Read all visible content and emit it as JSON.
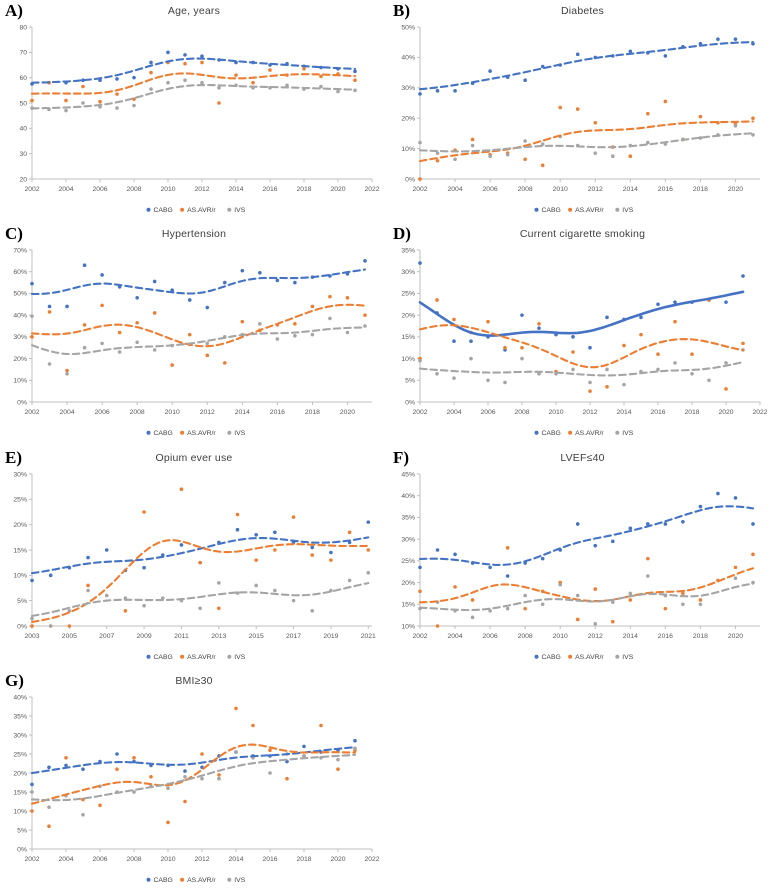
{
  "page": {
    "background": "#ffffff"
  },
  "colors": {
    "cabg": "#4472C4",
    "avr": "#ED7D31",
    "ivs": "#A5A5A5",
    "axis_line": "#BFBFBF",
    "tick_text": "#595959",
    "title_text": "#3f3f3f"
  },
  "legend": {
    "items": [
      "CABG",
      "AS.AVR/r",
      "IVS"
    ]
  },
  "chart_data": [
    {
      "letter": "A)",
      "title": "Age, years",
      "type": "scatter",
      "trend_bw": 1.9,
      "x": {
        "domain": [
          2002,
          2022
        ],
        "ticks": [
          2002,
          2004,
          2006,
          2008,
          2010,
          2012,
          2014,
          2016,
          2018,
          2020,
          2022
        ]
      },
      "y": {
        "domain": [
          20,
          80
        ],
        "ticks": [
          20,
          30,
          40,
          50,
          60,
          70,
          80
        ],
        "format": "num"
      },
      "years": [
        2002,
        2003,
        2004,
        2005,
        2006,
        2007,
        2008,
        2009,
        2010,
        2011,
        2012,
        2013,
        2014,
        2015,
        2016,
        2017,
        2018,
        2019,
        2020,
        2021
      ],
      "series": [
        {
          "name": "CABG",
          "color_key": "cabg",
          "trend": "dashed",
          "values": [
            57.5,
            58,
            58,
            59,
            59,
            59.5,
            60,
            66,
            70,
            69,
            68.5,
            67,
            66,
            66,
            65,
            65.5,
            64.5,
            64,
            63.5,
            62.5
          ]
        },
        {
          "name": "AS.AVR/r",
          "color_key": "avr",
          "trend": "dashed",
          "values": [
            51,
            58,
            51,
            56.5,
            50.5,
            53.5,
            51.5,
            62,
            66,
            65.5,
            66,
            50,
            61,
            58,
            63,
            61,
            63.5,
            60.5,
            61.5,
            59
          ]
        },
        {
          "name": "IVS",
          "color_key": "ivs",
          "trend": "dashed",
          "values": [
            48,
            47.5,
            47,
            50,
            48.5,
            48,
            49,
            55.5,
            58,
            59,
            58,
            56,
            57,
            56,
            56,
            57,
            55.5,
            56.5,
            54.5,
            55
          ]
        }
      ]
    },
    {
      "letter": "B)",
      "title": "Diabetes",
      "type": "scatter",
      "trend_bw": 2.2,
      "x": {
        "domain": [
          2002,
          2021.4
        ],
        "ticks": [
          2002,
          2004,
          2006,
          2008,
          2010,
          2012,
          2014,
          2016,
          2018,
          2020
        ]
      },
      "y": {
        "domain": [
          0,
          50
        ],
        "ticks": [
          0,
          10,
          20,
          30,
          40,
          50
        ],
        "format": "pct"
      },
      "years": [
        2002,
        2003,
        2004,
        2005,
        2006,
        2007,
        2008,
        2009,
        2010,
        2011,
        2012,
        2013,
        2014,
        2015,
        2016,
        2017,
        2018,
        2019,
        2020,
        2021
      ],
      "series": [
        {
          "name": "CABG",
          "color_key": "cabg",
          "trend": "dashed",
          "values": [
            28,
            29,
            29,
            31.5,
            35.5,
            33.5,
            32.5,
            37,
            37.5,
            41,
            40,
            40.5,
            42,
            41.5,
            40.5,
            43.5,
            44.5,
            46,
            46,
            44.5
          ]
        },
        {
          "name": "AS.AVR/r",
          "color_key": "avr",
          "trend": "dashed",
          "values": [
            0,
            6,
            9.5,
            13,
            8,
            8.5,
            6.5,
            4.5,
            23.5,
            23,
            18.5,
            10.5,
            7.5,
            21.5,
            25.5,
            13,
            20.5,
            18.5,
            18,
            20
          ]
        },
        {
          "name": "IVS",
          "color_key": "ivs",
          "trend": "dashed",
          "values": [
            12,
            8.5,
            6.5,
            11,
            7.5,
            8,
            12.5,
            11.5,
            14,
            11,
            8.5,
            7.5,
            11,
            12,
            11.5,
            13,
            13.5,
            14.5,
            17.5,
            14.5
          ]
        }
      ]
    },
    {
      "letter": "C)",
      "title": "Hypertension",
      "type": "scatter",
      "trend_bw": 1.6,
      "x": {
        "domain": [
          2002,
          2021.4
        ],
        "ticks": [
          2002,
          2004,
          2006,
          2008,
          2010,
          2012,
          2014,
          2016,
          2018,
          2020
        ]
      },
      "y": {
        "domain": [
          0,
          70
        ],
        "ticks": [
          0,
          10,
          20,
          30,
          40,
          50,
          60,
          70
        ],
        "format": "pct"
      },
      "years": [
        2002,
        2003,
        2004,
        2005,
        2006,
        2007,
        2008,
        2009,
        2010,
        2011,
        2012,
        2013,
        2014,
        2015,
        2016,
        2017,
        2018,
        2019,
        2020,
        2021
      ],
      "series": [
        {
          "name": "CABG",
          "color_key": "cabg",
          "trend": "dashed",
          "values": [
            54.5,
            44,
            44,
            63,
            58.5,
            53,
            48,
            55.5,
            51.5,
            47,
            43.5,
            55,
            60.5,
            59.5,
            56,
            55,
            57.5,
            58,
            59,
            65
          ]
        },
        {
          "name": "AS.AVR/r",
          "color_key": "avr",
          "trend": "dashed",
          "values": [
            30,
            41.5,
            14.5,
            35.5,
            44.5,
            32,
            36.5,
            41,
            17,
            31,
            21.5,
            18,
            37,
            33,
            35.5,
            36,
            44,
            48.5,
            48,
            40
          ]
        },
        {
          "name": "IVS",
          "color_key": "ivs",
          "trend": "dashed",
          "values": [
            39.5,
            17.5,
            13,
            25,
            27,
            23,
            27.5,
            24,
            26,
            26.5,
            27,
            30,
            31,
            36,
            29,
            30.5,
            31,
            38.5,
            32,
            35
          ]
        }
      ]
    },
    {
      "letter": "D)",
      "title": "Current cigarette smoking",
      "type": "scatter",
      "trend_bw": 1.7,
      "x": {
        "domain": [
          2002,
          2022
        ],
        "ticks": [
          2002,
          2004,
          2006,
          2008,
          2010,
          2012,
          2014,
          2016,
          2018,
          2020,
          2022
        ]
      },
      "y": {
        "domain": [
          0,
          35
        ],
        "ticks": [
          0,
          5,
          10,
          15,
          20,
          25,
          30,
          35
        ],
        "format": "pct"
      },
      "years": [
        2002,
        2003,
        2004,
        2005,
        2006,
        2007,
        2008,
        2009,
        2010,
        2011,
        2012,
        2013,
        2014,
        2015,
        2016,
        2017,
        2018,
        2019,
        2020,
        2021
      ],
      "series": [
        {
          "name": "CABG",
          "color_key": "cabg",
          "trend": "solid",
          "values": [
            32,
            20.5,
            14,
            14,
            15,
            12,
            20,
            17,
            15.5,
            15,
            12.5,
            19.5,
            19,
            19.5,
            22.5,
            23,
            23,
            23.5,
            23,
            29
          ]
        },
        {
          "name": "AS.AVR/r",
          "color_key": "avr",
          "trend": "dashed",
          "values": [
            10,
            23.5,
            19,
            16,
            18.5,
            12.5,
            12.5,
            18,
            7,
            11.5,
            2.5,
            3.5,
            13,
            15.5,
            11,
            18.5,
            11,
            23.5,
            3,
            13.5
          ]
        },
        {
          "name": "IVS",
          "color_key": "ivs",
          "trend": "dashed",
          "values": [
            9.5,
            6.5,
            5.5,
            10,
            5,
            4.5,
            10,
            6.5,
            6.5,
            7.5,
            4.5,
            7.5,
            4,
            7,
            7.5,
            9,
            6.5,
            5,
            9,
            12
          ]
        }
      ]
    },
    {
      "letter": "E)",
      "title": "Opium ever use",
      "type": "scatter",
      "trend_bw": 1.8,
      "x": {
        "domain": [
          2003,
          2021.2
        ],
        "ticks": [
          2003,
          2005,
          2007,
          2009,
          2011,
          2013,
          2015,
          2017,
          2019,
          2021
        ]
      },
      "y": {
        "domain": [
          0,
          30
        ],
        "ticks": [
          0,
          5,
          10,
          15,
          20,
          25,
          30
        ],
        "format": "pct"
      },
      "years": [
        2003,
        2004,
        2005,
        2006,
        2007,
        2008,
        2009,
        2010,
        2011,
        2012,
        2013,
        2014,
        2015,
        2016,
        2017,
        2018,
        2019,
        2020,
        2021
      ],
      "series": [
        {
          "name": "CABG",
          "color_key": "cabg",
          "trend": "dashed",
          "values": [
            9,
            10,
            11.5,
            13.5,
            15,
            11,
            11.5,
            14,
            16,
            12.5,
            16.5,
            19,
            18,
            18.5,
            16.5,
            15.5,
            14.5,
            16.5,
            20.5
          ]
        },
        {
          "name": "AS.AVR/r",
          "color_key": "avr",
          "trend": "dashed",
          "values": [
            0,
            0,
            0,
            8,
            null,
            3,
            22.5,
            null,
            27,
            12.5,
            3.5,
            22,
            13,
            15,
            21.5,
            14,
            13,
            18.5,
            15
          ]
        },
        {
          "name": "IVS",
          "color_key": "ivs",
          "trend": "dashed",
          "values": [
            1.5,
            0,
            3,
            7,
            6,
            5.5,
            4,
            5.5,
            5,
            3.5,
            8.5,
            6.5,
            8,
            7,
            5,
            3,
            7,
            9,
            10.5
          ]
        }
      ]
    },
    {
      "letter": "F)",
      "title": "LVEF≤40",
      "type": "scatter",
      "trend_bw": 1.7,
      "x": {
        "domain": [
          2002,
          2021.4
        ],
        "ticks": [
          2002,
          2004,
          2006,
          2008,
          2010,
          2012,
          2014,
          2016,
          2018,
          2020
        ]
      },
      "y": {
        "domain": [
          10,
          45
        ],
        "ticks": [
          10,
          15,
          20,
          25,
          30,
          35,
          40,
          45
        ],
        "format": "pct"
      },
      "years": [
        2002,
        2003,
        2004,
        2005,
        2006,
        2007,
        2008,
        2009,
        2010,
        2011,
        2012,
        2013,
        2014,
        2015,
        2016,
        2017,
        2018,
        2019,
        2020,
        2021
      ],
      "series": [
        {
          "name": "CABG",
          "color_key": "cabg",
          "trend": "dashed",
          "values": [
            23.5,
            27.5,
            26.5,
            24.5,
            23.5,
            21.5,
            24.5,
            25.5,
            27.5,
            33.5,
            28.5,
            29.5,
            32.5,
            33.5,
            33.5,
            34,
            37.5,
            40.5,
            39.5,
            33.5
          ]
        },
        {
          "name": "AS.AVR/r",
          "color_key": "avr",
          "trend": "dashed",
          "values": [
            18,
            10,
            19,
            16,
            null,
            28,
            14,
            18,
            20,
            11.5,
            18.5,
            11,
            16,
            25.5,
            14,
            17.5,
            16,
            20.5,
            23.5,
            26.5
          ]
        },
        {
          "name": "IVS",
          "color_key": "ivs",
          "trend": "dashed",
          "values": [
            14,
            15.5,
            13.5,
            12,
            13.5,
            14,
            17,
            15,
            19.5,
            17,
            10.5,
            15.5,
            17.5,
            21.5,
            17,
            15,
            15,
            null,
            21,
            20
          ]
        }
      ]
    },
    {
      "letter": "G)",
      "title": "BMI≥30",
      "type": "scatter",
      "trend_bw": 1.8,
      "x": {
        "domain": [
          2002,
          2022
        ],
        "ticks": [
          2002,
          2004,
          2006,
          2008,
          2010,
          2012,
          2014,
          2016,
          2018,
          2020,
          2022
        ]
      },
      "y": {
        "domain": [
          0,
          40
        ],
        "ticks": [
          0,
          5,
          10,
          15,
          20,
          25,
          30,
          35,
          40
        ],
        "format": "pct"
      },
      "years": [
        2002,
        2003,
        2004,
        2005,
        2006,
        2007,
        2008,
        2009,
        2010,
        2011,
        2012,
        2013,
        2014,
        2015,
        2016,
        2017,
        2018,
        2019,
        2020,
        2021
      ],
      "series": [
        {
          "name": "CABG",
          "color_key": "cabg",
          "trend": "dashed",
          "values": [
            17,
            21.5,
            22,
            21,
            23,
            25,
            23,
            22,
            22,
            20.5,
            21.5,
            24.5,
            25.5,
            24.5,
            24.5,
            23,
            27,
            25.5,
            26,
            28.5
          ]
        },
        {
          "name": "AS.AVR/r",
          "color_key": "avr",
          "trend": "dashed",
          "values": [
            10,
            6,
            24,
            13,
            11.5,
            21,
            24,
            19,
            7,
            12.5,
            25,
            19.5,
            37,
            32.5,
            26,
            18.5,
            24.5,
            32.5,
            21,
            26
          ]
        },
        {
          "name": "IVS",
          "color_key": "ivs",
          "trend": "dashed",
          "values": [
            15,
            11,
            14,
            9,
            16.5,
            15,
            15,
            16.5,
            16,
            19,
            18.5,
            18.5,
            25.5,
            24,
            20,
            25,
            24.5,
            24,
            23.5,
            26.5
          ]
        }
      ]
    }
  ]
}
